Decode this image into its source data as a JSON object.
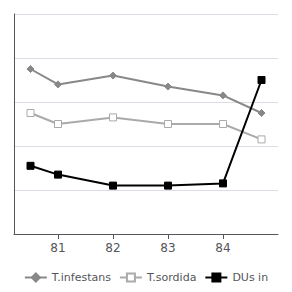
{
  "chart_data": {
    "type": "line",
    "series": [
      {
        "name": "T.infestans",
        "color": "#888888",
        "marker": "diamond",
        "x": [
          80.5,
          81,
          82,
          83,
          84,
          84.7
        ],
        "values": [
          75,
          68,
          72,
          67,
          63,
          55
        ]
      },
      {
        "name": "T.sordida",
        "color": "#aaaaaa",
        "marker": "square-open",
        "x": [
          80.5,
          81,
          82,
          83,
          84,
          84.7
        ],
        "values": [
          55,
          50,
          53,
          50,
          50,
          43
        ]
      },
      {
        "name": "DUs in",
        "color": "#000000",
        "marker": "square",
        "x": [
          80.5,
          81,
          82,
          83,
          84,
          84.7
        ],
        "values": [
          31,
          27,
          22,
          22,
          23,
          70
        ]
      }
    ],
    "xlim": [
      80.2,
      85.0
    ],
    "xticks": [
      81,
      82,
      83,
      84
    ],
    "ylim": [
      0,
      100
    ],
    "yticks": [
      0,
      20,
      40,
      60,
      80,
      100
    ],
    "grid": true,
    "tick_labels": "x",
    "legend": "bottom"
  }
}
